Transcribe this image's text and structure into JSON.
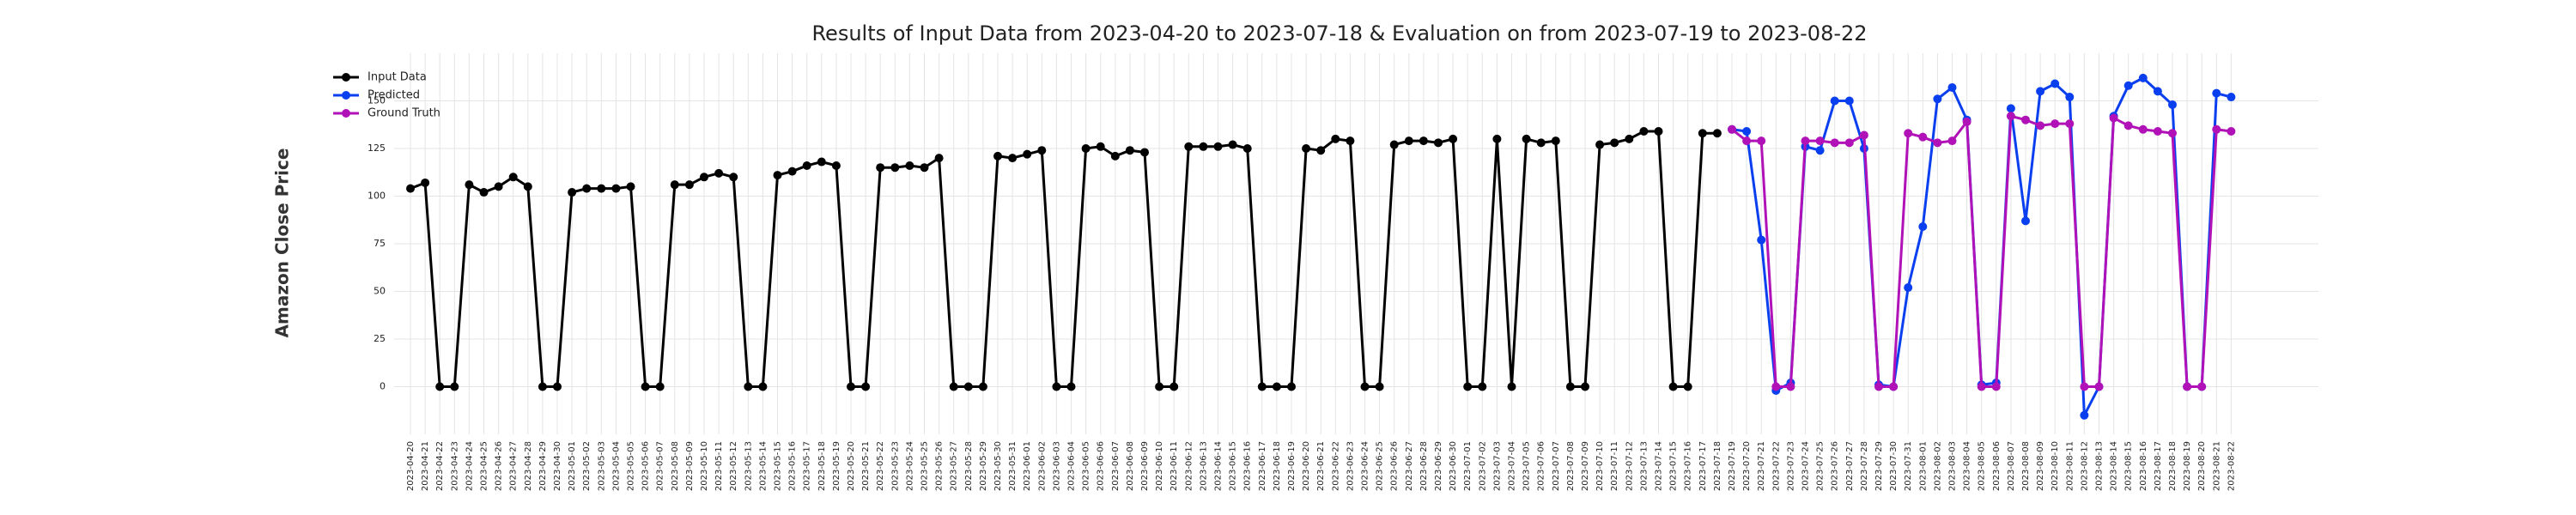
{
  "chart_data": {
    "type": "line",
    "title": "Results of Input Data from 2023-04-20 to 2023-07-18 & Evaluation on from 2023-07-19 to 2023-08-22",
    "y_label": "Amazon Close Price",
    "categories": [
      "2023-04-20",
      "2023-04-21",
      "2023-04-22",
      "2023-04-23",
      "2023-04-24",
      "2023-04-25",
      "2023-04-26",
      "2023-04-27",
      "2023-04-28",
      "2023-04-29",
      "2023-04-30",
      "2023-05-01",
      "2023-05-02",
      "2023-05-03",
      "2023-05-04",
      "2023-05-05",
      "2023-05-06",
      "2023-05-07",
      "2023-05-08",
      "2023-05-09",
      "2023-05-10",
      "2023-05-11",
      "2023-05-12",
      "2023-05-13",
      "2023-05-14",
      "2023-05-15",
      "2023-05-16",
      "2023-05-17",
      "2023-05-18",
      "2023-05-19",
      "2023-05-20",
      "2023-05-21",
      "2023-05-22",
      "2023-05-23",
      "2023-05-24",
      "2023-05-25",
      "2023-05-26",
      "2023-05-27",
      "2023-05-28",
      "2023-05-29",
      "2023-05-30",
      "2023-05-31",
      "2023-06-01",
      "2023-06-02",
      "2023-06-03",
      "2023-06-04",
      "2023-06-05",
      "2023-06-06",
      "2023-06-07",
      "2023-06-08",
      "2023-06-09",
      "2023-06-10",
      "2023-06-11",
      "2023-06-12",
      "2023-06-13",
      "2023-06-14",
      "2023-06-15",
      "2023-06-16",
      "2023-06-17",
      "2023-06-18",
      "2023-06-19",
      "2023-06-20",
      "2023-06-21",
      "2023-06-22",
      "2023-06-23",
      "2023-06-24",
      "2023-06-25",
      "2023-06-26",
      "2023-06-27",
      "2023-06-28",
      "2023-06-29",
      "2023-06-30",
      "2023-07-01",
      "2023-07-02",
      "2023-07-03",
      "2023-07-04",
      "2023-07-05",
      "2023-07-06",
      "2023-07-07",
      "2023-07-08",
      "2023-07-09",
      "2023-07-10",
      "2023-07-11",
      "2023-07-12",
      "2023-07-13",
      "2023-07-14",
      "2023-07-15",
      "2023-07-16",
      "2023-07-17",
      "2023-07-18",
      "2023-07-19",
      "2023-07-20",
      "2023-07-21",
      "2023-07-22",
      "2023-07-23",
      "2023-07-24",
      "2023-07-25",
      "2023-07-26",
      "2023-07-27",
      "2023-07-28",
      "2023-07-29",
      "2023-07-30",
      "2023-07-31",
      "2023-08-01",
      "2023-08-02",
      "2023-08-03",
      "2023-08-04",
      "2023-08-05",
      "2023-08-06",
      "2023-08-07",
      "2023-08-08",
      "2023-08-09",
      "2023-08-10",
      "2023-08-11",
      "2023-08-12",
      "2023-08-13",
      "2023-08-14",
      "2023-08-15",
      "2023-08-16",
      "2023-08-17",
      "2023-08-18",
      "2023-08-19",
      "2023-08-20",
      "2023-08-21",
      "2023-08-22"
    ],
    "series": [
      {
        "name": "Input Data",
        "color": "#000000",
        "values": [
          104,
          107,
          0,
          0,
          106,
          102,
          105,
          110,
          105,
          0,
          0,
          102,
          104,
          104,
          104,
          105,
          0,
          0,
          106,
          106,
          110,
          112,
          110,
          0,
          0,
          111,
          113,
          116,
          118,
          116,
          0,
          0,
          115,
          115,
          116,
          115,
          120,
          0,
          0,
          0,
          121,
          120,
          122,
          124,
          0,
          0,
          125,
          126,
          121,
          124,
          123,
          0,
          0,
          126,
          126,
          126,
          127,
          125,
          0,
          0,
          0,
          125,
          124,
          130,
          129,
          0,
          0,
          127,
          129,
          129,
          128,
          130,
          0,
          0,
          130,
          0,
          130,
          128,
          129,
          0,
          0,
          127,
          128,
          130,
          134,
          134,
          0,
          0,
          133,
          133,
          null,
          null,
          null,
          null,
          null,
          null,
          null,
          null,
          null,
          null,
          null,
          null,
          null,
          null,
          null,
          null,
          null,
          null,
          null,
          null,
          null,
          null,
          null,
          null,
          null,
          null,
          null,
          null,
          null,
          null,
          null,
          null,
          null,
          null,
          null
        ]
      },
      {
        "name": "Predicted",
        "color": "#0a3ff0",
        "values": [
          null,
          null,
          null,
          null,
          null,
          null,
          null,
          null,
          null,
          null,
          null,
          null,
          null,
          null,
          null,
          null,
          null,
          null,
          null,
          null,
          null,
          null,
          null,
          null,
          null,
          null,
          null,
          null,
          null,
          null,
          null,
          null,
          null,
          null,
          null,
          null,
          null,
          null,
          null,
          null,
          null,
          null,
          null,
          null,
          null,
          null,
          null,
          null,
          null,
          null,
          null,
          null,
          null,
          null,
          null,
          null,
          null,
          null,
          null,
          null,
          null,
          null,
          null,
          null,
          null,
          null,
          null,
          null,
          null,
          null,
          null,
          null,
          null,
          null,
          null,
          null,
          null,
          null,
          null,
          null,
          null,
          null,
          null,
          null,
          null,
          null,
          null,
          null,
          null,
          null,
          135,
          134,
          77,
          -2,
          2,
          126,
          124,
          150,
          150,
          125,
          1,
          0,
          52,
          84,
          151,
          157,
          140,
          1,
          2,
          146,
          87,
          155,
          159,
          152,
          -15,
          0,
          142,
          158,
          162,
          155,
          148,
          0,
          0,
          154,
          152
        ]
      },
      {
        "name": "Ground Truth",
        "color": "#b012b8",
        "values": [
          null,
          null,
          null,
          null,
          null,
          null,
          null,
          null,
          null,
          null,
          null,
          null,
          null,
          null,
          null,
          null,
          null,
          null,
          null,
          null,
          null,
          null,
          null,
          null,
          null,
          null,
          null,
          null,
          null,
          null,
          null,
          null,
          null,
          null,
          null,
          null,
          null,
          null,
          null,
          null,
          null,
          null,
          null,
          null,
          null,
          null,
          null,
          null,
          null,
          null,
          null,
          null,
          null,
          null,
          null,
          null,
          null,
          null,
          null,
          null,
          null,
          null,
          null,
          null,
          null,
          null,
          null,
          null,
          null,
          null,
          null,
          null,
          null,
          null,
          null,
          null,
          null,
          null,
          null,
          null,
          null,
          null,
          null,
          null,
          null,
          null,
          null,
          null,
          null,
          null,
          135,
          129,
          129,
          0,
          0,
          129,
          129,
          128,
          128,
          132,
          0,
          0,
          133,
          131,
          128,
          129,
          139,
          0,
          0,
          142,
          140,
          137,
          138,
          138,
          0,
          0,
          141,
          137,
          135,
          134,
          133,
          0,
          0,
          135,
          134
        ]
      }
    ],
    "ylim": [
      -25,
      175
    ],
    "yticks": [
      0,
      25,
      50,
      75,
      100,
      125,
      150
    ],
    "grid": true,
    "legend": "upper left"
  }
}
